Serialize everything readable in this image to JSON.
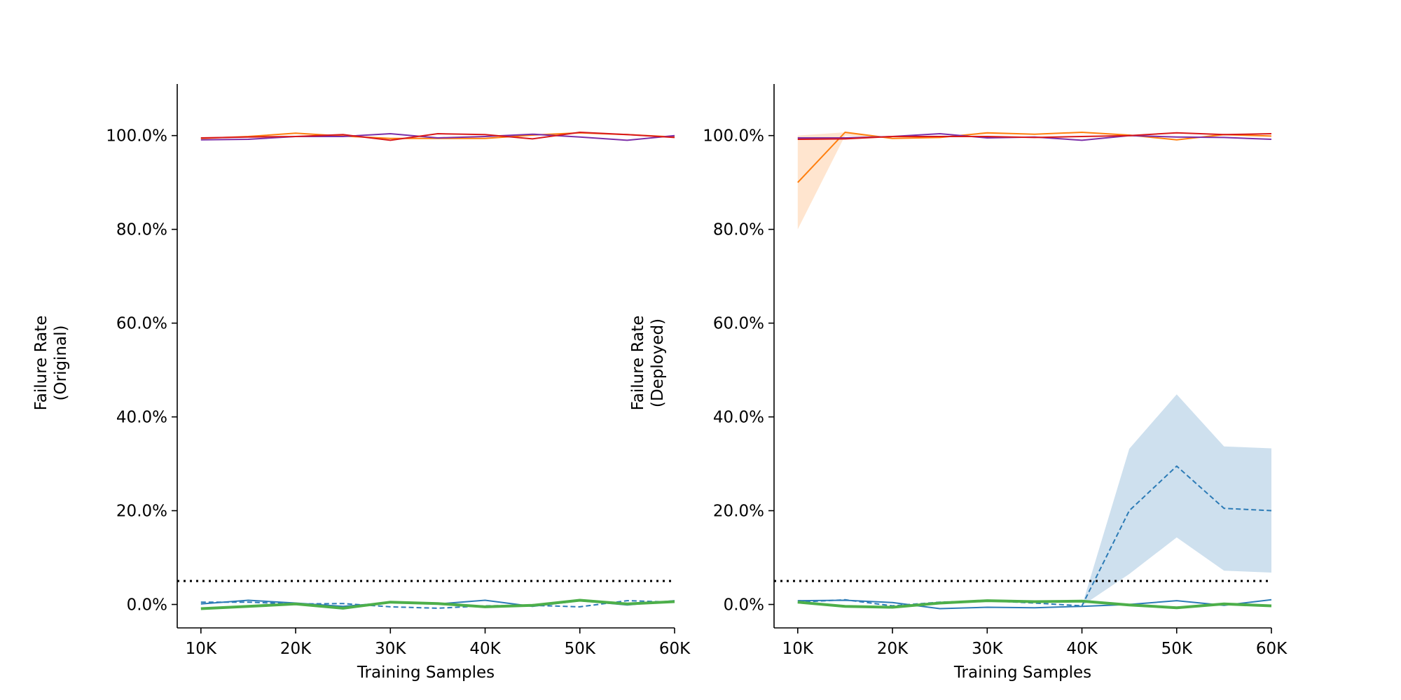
{
  "chart_data": [
    {
      "type": "line",
      "panel": "left",
      "ylabel": [
        "Failure Rate",
        "(Original)"
      ],
      "xlabel": "Training Samples",
      "x": [
        10000,
        15000,
        20000,
        25000,
        30000,
        35000,
        40000,
        45000,
        50000,
        55000,
        60000
      ],
      "xticks": [
        10000,
        20000,
        30000,
        40000,
        50000,
        60000
      ],
      "xtick_labels": [
        "10K",
        "20K",
        "30K",
        "40K",
        "50K",
        "60K"
      ],
      "yticks": [
        0,
        20,
        40,
        60,
        80,
        100
      ],
      "ytick_labels": [
        "0.0%",
        "20.0%",
        "40.0%",
        "60.0%",
        "80.0%",
        "100.0%"
      ],
      "xlim": [
        7500,
        60000
      ],
      "ylim": [
        -5,
        111
      ],
      "threshold": 5,
      "grid": false,
      "series": [
        {
          "color": "#ff7f0e",
          "style": "solid",
          "width": 2,
          "values": [
            99.4,
            99.8,
            100.5,
            99.9,
            99.4,
            99.4,
            99.4,
            100.1,
            100.6,
            100.2,
            99.7
          ]
        },
        {
          "color": "#7b2fa8",
          "style": "solid",
          "width": 2,
          "values": [
            99.1,
            99.2,
            99.8,
            99.8,
            100.4,
            99.5,
            99.8,
            100.3,
            99.7,
            99.0,
            100.0
          ]
        },
        {
          "color": "#d7191c",
          "style": "solid",
          "width": 2,
          "values": [
            99.5,
            99.7,
            99.8,
            100.2,
            99.0,
            100.4,
            100.2,
            99.3,
            100.7,
            100.2,
            99.6
          ]
        },
        {
          "color": "#2c7bb6",
          "style": "solid",
          "width": 2,
          "values": [
            0.1,
            0.9,
            0.3,
            -0.4,
            0.4,
            0.1,
            0.9,
            -0.4,
            0.8,
            -0.1,
            0.8
          ]
        },
        {
          "color": "#2c7bb6",
          "style": "dashed",
          "width": 2,
          "values": [
            0.5,
            0.5,
            0.1,
            0.2,
            -0.5,
            -0.8,
            -0.3,
            -0.2,
            -0.5,
            0.8,
            0.5
          ]
        },
        {
          "color": "#4daf4a",
          "style": "solid",
          "width": 4,
          "values": [
            -0.9,
            -0.4,
            0.1,
            -0.8,
            0.5,
            0.2,
            -0.5,
            -0.2,
            0.9,
            0.1,
            0.6
          ]
        }
      ]
    },
    {
      "type": "line",
      "panel": "right",
      "ylabel": [
        "Failure Rate",
        "(Deployed)"
      ],
      "xlabel": "Training Samples",
      "x": [
        10000,
        15000,
        20000,
        25000,
        30000,
        35000,
        40000,
        45000,
        50000,
        55000,
        60000
      ],
      "xticks": [
        10000,
        20000,
        30000,
        40000,
        50000,
        60000
      ],
      "xtick_labels": [
        "10K",
        "20K",
        "30K",
        "40K",
        "50K",
        "60K"
      ],
      "yticks": [
        0,
        20,
        40,
        60,
        80,
        100
      ],
      "ytick_labels": [
        "0.0%",
        "20.0%",
        "40.0%",
        "60.0%",
        "80.0%",
        "100.0%"
      ],
      "xlim": [
        7500,
        60000
      ],
      "ylim": [
        -5,
        111
      ],
      "threshold": 5,
      "grid": false,
      "series": [
        {
          "color": "#ff7f0e",
          "style": "solid",
          "width": 2,
          "values": [
            90.0,
            100.7,
            99.4,
            99.6,
            100.6,
            100.3,
            100.7,
            100.1,
            99.1,
            100.2,
            99.9
          ],
          "band": {
            "color": "#ff7f0e",
            "opacity": 0.2,
            "lower": [
              80.0,
              100.0,
              99.4,
              99.6,
              100.3,
              100.2,
              100.5,
              100.0,
              99.1,
              100.0,
              99.8
            ],
            "upper": [
              100.0,
              100.7,
              99.4,
              99.6,
              100.6,
              100.3,
              100.7,
              100.1,
              99.1,
              100.2,
              99.9
            ]
          }
        },
        {
          "color": "#7b2fa8",
          "style": "solid",
          "width": 2,
          "values": [
            99.5,
            99.5,
            99.8,
            100.4,
            99.5,
            99.7,
            99.0,
            100.0,
            99.7,
            99.6,
            99.2
          ]
        },
        {
          "color": "#d7191c",
          "style": "solid",
          "width": 2,
          "values": [
            99.2,
            99.3,
            99.8,
            99.8,
            99.8,
            99.6,
            99.8,
            100.0,
            100.6,
            100.2,
            100.4
          ]
        },
        {
          "color": "#2c7bb6",
          "style": "solid",
          "width": 2,
          "values": [
            0.8,
            0.9,
            0.4,
            -0.9,
            -0.6,
            -0.7,
            -0.4,
            0.0,
            0.8,
            -0.2,
            1.0
          ]
        },
        {
          "color": "#2c7bb6",
          "style": "dashed",
          "width": 2,
          "values": [
            0.5,
            1.0,
            -0.3,
            0.5,
            0.8,
            0.3,
            -0.3,
            20.0,
            29.5,
            20.5,
            20.0
          ],
          "band": {
            "color": "#2c7bb6",
            "opacity": 0.23,
            "lower": [
              0.5,
              1.0,
              -0.3,
              0.5,
              0.8,
              0.3,
              -0.3,
              6.5,
              14.3,
              7.2,
              6.8
            ],
            "upper": [
              0.5,
              1.0,
              -0.3,
              0.5,
              0.8,
              0.3,
              -0.3,
              33.2,
              44.8,
              33.7,
              33.3
            ]
          }
        },
        {
          "color": "#4daf4a",
          "style": "solid",
          "width": 4,
          "values": [
            0.5,
            -0.4,
            -0.6,
            0.3,
            0.8,
            0.6,
            0.7,
            -0.1,
            -0.7,
            0.1,
            -0.3
          ]
        }
      ]
    }
  ]
}
